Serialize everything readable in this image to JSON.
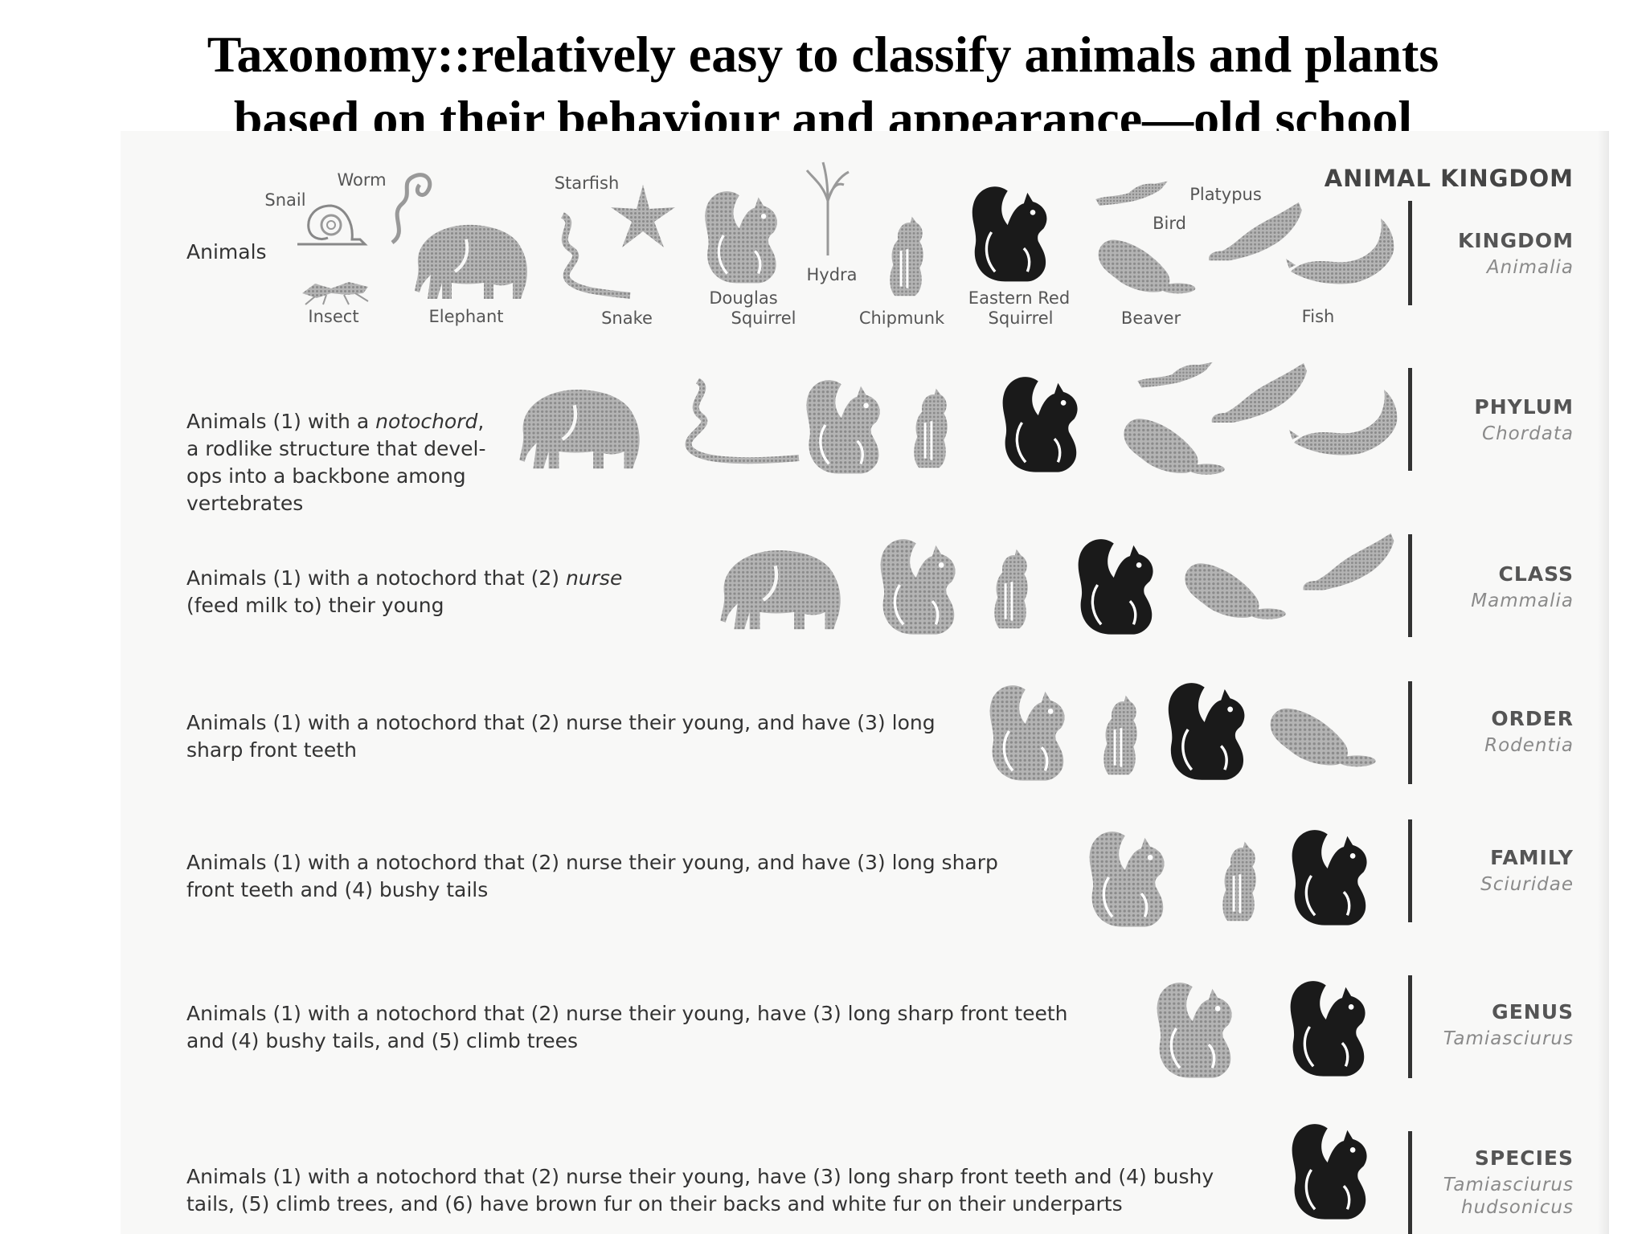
{
  "title": {
    "line1": "Taxonomy::relatively easy to classify animals and plants",
    "line2": "based on their behaviour and appearance—old school"
  },
  "header": "ANIMAL KINGDOM",
  "kingdom_row": {
    "desc": "Animals",
    "labels": {
      "worm": "Worm",
      "snail": "Snail",
      "insect": "Insect",
      "elephant": "Elephant",
      "starfish": "Starfish",
      "snake": "Snake",
      "douglas_line1": "Douglas",
      "douglas_line2": "Squirrel",
      "hydra": "Hydra",
      "chipmunk": "Chipmunk",
      "eastern_line1": "Eastern Red",
      "eastern_line2": "Squirrel",
      "bird": "Bird",
      "platypus": "Platypus",
      "beaver": "Beaver",
      "fish": "Fish"
    }
  },
  "rows": [
    {
      "rank": "KINGDOM",
      "sci": "Animalia"
    },
    {
      "rank": "PHYLUM",
      "sci": "Chordata",
      "desc": [
        "Animals (1) with a ",
        "notochord",
        ",",
        "a rodlike structure that devel-",
        "ops into a backbone among",
        "vertebrates"
      ]
    },
    {
      "rank": "CLASS",
      "sci": "Mammalia",
      "desc": [
        "Animals (1) with a notochord that (2) ",
        "nurse",
        "(feed milk to) their young"
      ]
    },
    {
      "rank": "ORDER",
      "sci": "Rodentia",
      "desc": [
        "Animals (1) with a notochord that (2) nurse their young, and have (3) long",
        "sharp front teeth"
      ]
    },
    {
      "rank": "FAMILY",
      "sci": "Sciuridae",
      "desc": [
        "Animals (1) with a notochord that (2) nurse their young, and have (3) long sharp",
        "front teeth and (4) bushy tails"
      ]
    },
    {
      "rank": "GENUS",
      "sci": "Tamiasciurus",
      "desc": [
        "Animals (1) with a notochord that (2) nurse their young, have (3) long sharp front teeth",
        "and (4) bushy tails, and (5) climb trees"
      ]
    },
    {
      "rank": "SPECIES",
      "sci": "Tamiasciurus",
      "sci2": "hudsonicus",
      "desc": [
        "Animals (1) with a notochord that (2) nurse their young, have (3) long sharp front teeth and (4) bushy",
        "tails, (5) climb trees, and (6) have brown fur on their backs and white fur on their underparts"
      ]
    }
  ],
  "colors": {
    "grey_figure": "#9a9a9a",
    "black_figure": "#1a1a1a",
    "bar": "#333333"
  }
}
